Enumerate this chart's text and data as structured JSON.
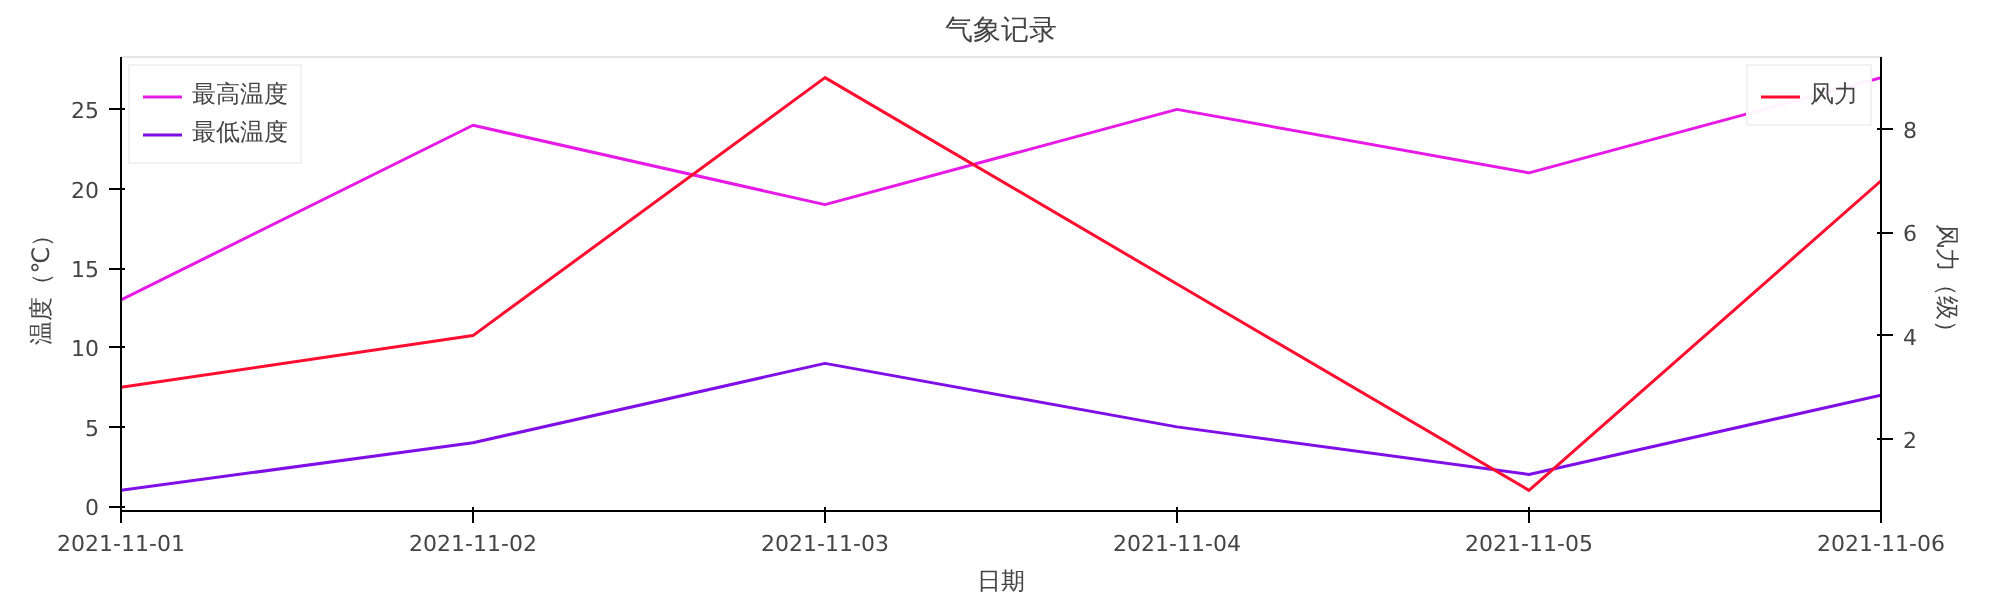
{
  "chart_data": {
    "type": "line",
    "title": "气象记录",
    "xlabel": "日期",
    "ylabel": "温度（℃）",
    "y2label": "风力（级）",
    "x": [
      "2021-11-01",
      "2021-11-02",
      "2021-11-03",
      "2021-11-04",
      "2021-11-05",
      "2021-11-06"
    ],
    "xlim": [
      "2021-11-01",
      "2021-11-06"
    ],
    "xticks": [
      "2021-11-01",
      "2021-11-02",
      "2021-11-03",
      "2021-11-04",
      "2021-11-05",
      "2021-11-06"
    ],
    "ylim": [
      -0.3,
      28.3
    ],
    "yticks": [
      0,
      5,
      10,
      15,
      20,
      25
    ],
    "y2lim": [
      0.6,
      9.4
    ],
    "y2ticks": [
      2,
      4,
      6,
      8
    ],
    "legend": "top left",
    "grid": false,
    "marker": "none",
    "line_style": "solid",
    "series": [
      {
        "name": "最高温度",
        "color": "#e619e6",
        "values": [
          13,
          24,
          19,
          25,
          21,
          27
        ]
      },
      {
        "name": "最低温度",
        "color": "#7f0fe6",
        "values": [
          1,
          4,
          9,
          5,
          2,
          7
        ]
      },
      {
        "name": "风力",
        "color": "#ff0d2e",
        "values": [
          3,
          4,
          9,
          5,
          1,
          7
        ],
        "axis": "y2"
      }
    ]
  }
}
